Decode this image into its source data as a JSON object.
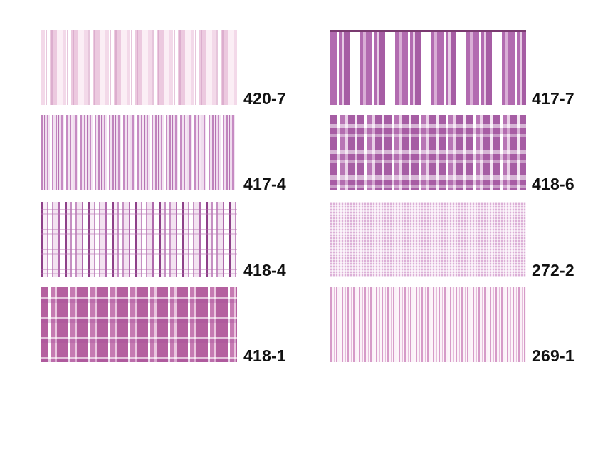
{
  "swatches": [
    {
      "code": "420-7",
      "pattern": "pale-pink-stripe-icon"
    },
    {
      "code": "417-7",
      "pattern": "lilac-bold-stripe-icon"
    },
    {
      "code": "417-4",
      "pattern": "lilac-fine-stripe-icon"
    },
    {
      "code": "418-6",
      "pattern": "lilac-plaid-icon"
    },
    {
      "code": "418-4",
      "pattern": "lilac-window-check-icon"
    },
    {
      "code": "272-2",
      "pattern": "pink-micro-check-icon"
    },
    {
      "code": "418-1",
      "pattern": "pink-check-icon"
    },
    {
      "code": "269-1",
      "pattern": "pink-pinstripe-icon"
    }
  ],
  "colors": {
    "background": "#ffffff",
    "label": "#111111",
    "lilac": "#a65da4",
    "pink": "#d69bc8"
  }
}
